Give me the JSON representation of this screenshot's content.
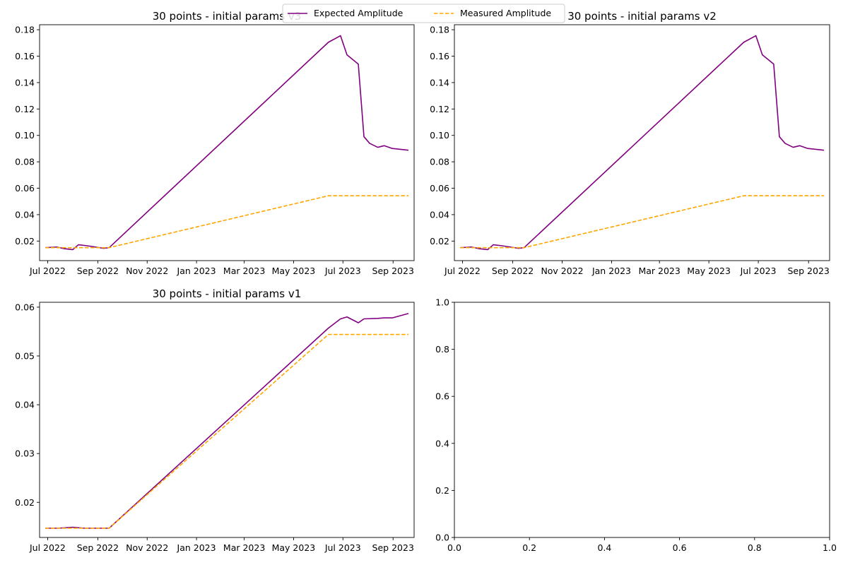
{
  "legend": {
    "placement": "top-center",
    "entries": [
      {
        "label": "Expected Amplitude",
        "color": "#800080",
        "style": "solid"
      },
      {
        "label": "Measured Amplitude",
        "color": "#FFA500",
        "style": "dashed"
      }
    ]
  },
  "chart_data": [
    {
      "type": "line",
      "title": "30 points - initial params v3",
      "xlabel": "",
      "ylabel": "",
      "x_type": "date",
      "xlim": [
        "2022-06-21",
        "2023-09-27"
      ],
      "ylim": [
        0.0052,
        0.1838
      ],
      "xticks": [
        {
          "value": "2022-07-01",
          "label": "Jul 2022"
        },
        {
          "value": "2022-09-01",
          "label": "Sep 2022"
        },
        {
          "value": "2022-11-01",
          "label": "Nov 2022"
        },
        {
          "value": "2023-01-01",
          "label": "Jan 2023"
        },
        {
          "value": "2023-03-01",
          "label": "Mar 2023"
        },
        {
          "value": "2023-05-01",
          "label": "May 2023"
        },
        {
          "value": "2023-07-01",
          "label": "Jul 2023"
        },
        {
          "value": "2023-09-01",
          "label": "Sep 2023"
        }
      ],
      "yticks": [
        {
          "value": 0.02,
          "label": "0.02"
        },
        {
          "value": 0.04,
          "label": "0.04"
        },
        {
          "value": 0.06,
          "label": "0.06"
        },
        {
          "value": 0.08,
          "label": "0.08"
        },
        {
          "value": 0.1,
          "label": "0.10"
        },
        {
          "value": 0.12,
          "label": "0.12"
        },
        {
          "value": 0.14,
          "label": "0.14"
        },
        {
          "value": 0.16,
          "label": "0.16"
        },
        {
          "value": 0.18,
          "label": "0.18"
        }
      ],
      "series": [
        {
          "name": "Expected Amplitude",
          "color": "#800080",
          "dash": false,
          "x": [
            "2022-06-28",
            "2022-07-12",
            "2022-07-22",
            "2022-08-01",
            "2022-08-08",
            "2022-08-18",
            "2022-08-29",
            "2022-09-08",
            "2022-09-15",
            "2023-06-13",
            "2023-06-28",
            "2023-07-06",
            "2023-07-20",
            "2023-07-27",
            "2023-08-03",
            "2023-08-13",
            "2023-08-21",
            "2023-08-31",
            "2023-09-20"
          ],
          "y": [
            0.015,
            0.0155,
            0.0142,
            0.0135,
            0.0172,
            0.0165,
            0.0155,
            0.0145,
            0.015,
            0.1705,
            0.1755,
            0.161,
            0.154,
            0.099,
            0.094,
            0.091,
            0.0922,
            0.0901,
            0.0888
          ]
        },
        {
          "name": "Measured Amplitude",
          "color": "#FFA500",
          "dash": true,
          "x": [
            "2022-06-28",
            "2022-09-15",
            "2023-06-13",
            "2023-09-20"
          ],
          "y": [
            0.015,
            0.015,
            0.0543,
            0.0543
          ]
        }
      ]
    },
    {
      "type": "line",
      "title": "30 points - initial params v2",
      "xlabel": "",
      "ylabel": "",
      "x_type": "date",
      "xlim": [
        "2022-06-21",
        "2023-09-27"
      ],
      "ylim": [
        0.0052,
        0.1838
      ],
      "xticks": [
        {
          "value": "2022-07-01",
          "label": "Jul 2022"
        },
        {
          "value": "2022-09-01",
          "label": "Sep 2022"
        },
        {
          "value": "2022-11-01",
          "label": "Nov 2022"
        },
        {
          "value": "2023-01-01",
          "label": "Jan 2023"
        },
        {
          "value": "2023-03-01",
          "label": "Mar 2023"
        },
        {
          "value": "2023-05-01",
          "label": "May 2023"
        },
        {
          "value": "2023-07-01",
          "label": "Jul 2023"
        },
        {
          "value": "2023-09-01",
          "label": "Sep 2023"
        }
      ],
      "yticks": [
        {
          "value": 0.02,
          "label": "0.02"
        },
        {
          "value": 0.04,
          "label": "0.04"
        },
        {
          "value": 0.06,
          "label": "0.06"
        },
        {
          "value": 0.08,
          "label": "0.08"
        },
        {
          "value": 0.1,
          "label": "0.10"
        },
        {
          "value": 0.12,
          "label": "0.12"
        },
        {
          "value": 0.14,
          "label": "0.14"
        },
        {
          "value": 0.16,
          "label": "0.16"
        },
        {
          "value": 0.18,
          "label": "0.18"
        }
      ],
      "series": [
        {
          "name": "Expected Amplitude",
          "color": "#800080",
          "dash": false,
          "x": [
            "2022-06-28",
            "2022-07-12",
            "2022-07-22",
            "2022-08-01",
            "2022-08-08",
            "2022-08-18",
            "2022-08-29",
            "2022-09-08",
            "2022-09-15",
            "2023-06-13",
            "2023-06-28",
            "2023-07-06",
            "2023-07-20",
            "2023-07-27",
            "2023-08-03",
            "2023-08-13",
            "2023-08-21",
            "2023-08-31",
            "2023-09-20"
          ],
          "y": [
            0.015,
            0.0155,
            0.0142,
            0.0135,
            0.0172,
            0.0165,
            0.0155,
            0.0145,
            0.015,
            0.1705,
            0.1755,
            0.161,
            0.154,
            0.099,
            0.094,
            0.091,
            0.0922,
            0.0901,
            0.0888
          ]
        },
        {
          "name": "Measured Amplitude",
          "color": "#FFA500",
          "dash": true,
          "x": [
            "2022-06-28",
            "2022-09-15",
            "2023-06-13",
            "2023-09-20"
          ],
          "y": [
            0.015,
            0.015,
            0.0543,
            0.0543
          ]
        }
      ]
    },
    {
      "type": "line",
      "title": "30 points - initial params v1",
      "xlabel": "",
      "ylabel": "",
      "x_type": "date",
      "xlim": [
        "2022-06-21",
        "2023-09-27"
      ],
      "ylim": [
        0.0128,
        0.061
      ],
      "xticks": [
        {
          "value": "2022-07-01",
          "label": "Jul 2022"
        },
        {
          "value": "2022-09-01",
          "label": "Sep 2022"
        },
        {
          "value": "2022-11-01",
          "label": "Nov 2022"
        },
        {
          "value": "2023-01-01",
          "label": "Jan 2023"
        },
        {
          "value": "2023-03-01",
          "label": "Mar 2023"
        },
        {
          "value": "2023-05-01",
          "label": "May 2023"
        },
        {
          "value": "2023-07-01",
          "label": "Jul 2023"
        },
        {
          "value": "2023-09-01",
          "label": "Sep 2023"
        }
      ],
      "yticks": [
        {
          "value": 0.02,
          "label": "0.02"
        },
        {
          "value": 0.03,
          "label": "0.03"
        },
        {
          "value": 0.04,
          "label": "0.04"
        },
        {
          "value": 0.05,
          "label": "0.05"
        },
        {
          "value": 0.06,
          "label": "0.06"
        }
      ],
      "series": [
        {
          "name": "Expected Amplitude",
          "color": "#800080",
          "dash": false,
          "x": [
            "2022-06-28",
            "2022-07-15",
            "2022-08-01",
            "2022-08-15",
            "2022-09-01",
            "2022-09-15",
            "2023-06-13",
            "2023-06-28",
            "2023-07-06",
            "2023-07-20",
            "2023-07-27",
            "2023-08-13",
            "2023-08-21",
            "2023-08-31",
            "2023-09-20"
          ],
          "y": [
            0.0147,
            0.0147,
            0.0149,
            0.0147,
            0.0147,
            0.0147,
            0.0557,
            0.0576,
            0.058,
            0.0568,
            0.0576,
            0.0577,
            0.0578,
            0.0578,
            0.0587
          ]
        },
        {
          "name": "Measured Amplitude",
          "color": "#FFA500",
          "dash": true,
          "x": [
            "2022-06-28",
            "2022-09-15",
            "2023-06-13",
            "2023-09-20"
          ],
          "y": [
            0.0147,
            0.0147,
            0.0544,
            0.0544
          ]
        }
      ]
    },
    {
      "type": "line",
      "title": "",
      "xlabel": "",
      "ylabel": "",
      "x_type": "number",
      "xlim": [
        0,
        1
      ],
      "ylim": [
        0,
        1
      ],
      "xticks": [
        {
          "value": 0.0,
          "label": "0.0"
        },
        {
          "value": 0.2,
          "label": "0.2"
        },
        {
          "value": 0.4,
          "label": "0.4"
        },
        {
          "value": 0.6,
          "label": "0.6"
        },
        {
          "value": 0.8,
          "label": "0.8"
        },
        {
          "value": 1.0,
          "label": "1.0"
        }
      ],
      "yticks": [
        {
          "value": 0.0,
          "label": "0.0"
        },
        {
          "value": 0.2,
          "label": "0.2"
        },
        {
          "value": 0.4,
          "label": "0.4"
        },
        {
          "value": 0.6,
          "label": "0.6"
        },
        {
          "value": 0.8,
          "label": "0.8"
        },
        {
          "value": 1.0,
          "label": "1.0"
        }
      ],
      "series": []
    }
  ]
}
